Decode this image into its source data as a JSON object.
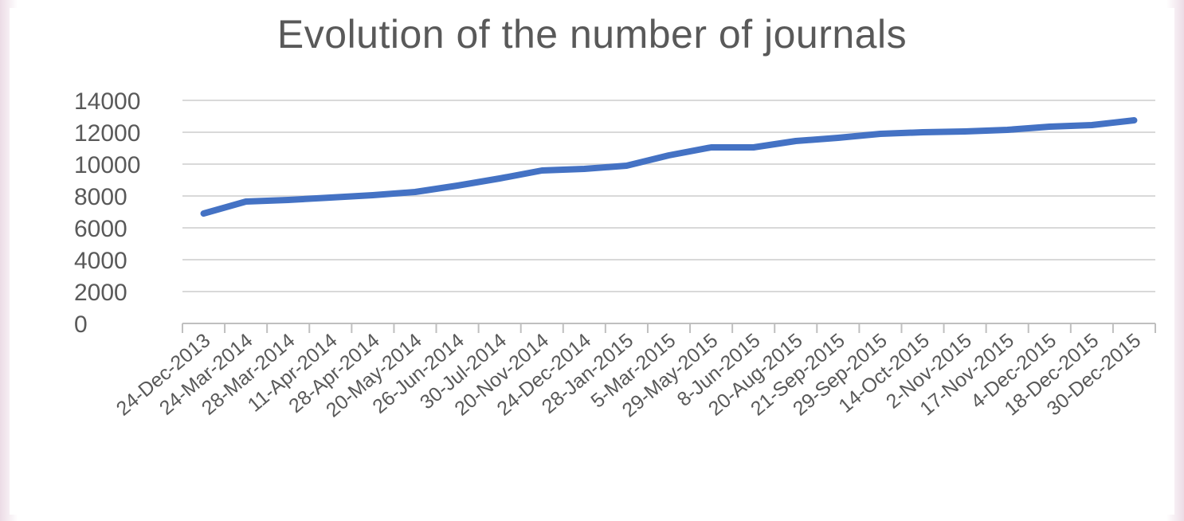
{
  "chart_data": {
    "type": "line",
    "title": "Evolution of the number of journals",
    "xlabel": "",
    "ylabel": "",
    "ylim": [
      0,
      14000
    ],
    "yticks": [
      0,
      2000,
      4000,
      6000,
      8000,
      10000,
      12000,
      14000
    ],
    "grid": true,
    "legend": "none",
    "categories": [
      "24-Dec-2013",
      "24-Mar-2014",
      "28-Mar-2014",
      "11-Apr-2014",
      "28-Apr-2014",
      "20-May-2014",
      "26-Jun-2014",
      "30-Jul-2014",
      "20-Nov-2014",
      "24-Dec-2014",
      "28-Jan-2015",
      "5-Mar-2015",
      "29-May-2015",
      "8-Jun-2015",
      "20-Aug-2015",
      "21-Sep-2015",
      "29-Sep-2015",
      "14-Oct-2015",
      "2-Nov-2015",
      "17-Nov-2015",
      "4-Dec-2015",
      "18-Dec-2015",
      "30-Dec-2015"
    ],
    "series": [
      {
        "values": [
          6900,
          7650,
          7750,
          7900,
          8050,
          8250,
          8650,
          9100,
          9600,
          9700,
          9900,
          10550,
          11050,
          11050,
          11450,
          11650,
          11900,
          12000,
          12050,
          12150,
          12350,
          12450,
          12750
        ]
      }
    ],
    "colors": {
      "line": "#4472c4",
      "grid": "#d9d9d9",
      "axis": "#bfbfbf",
      "text": "#595959"
    }
  }
}
